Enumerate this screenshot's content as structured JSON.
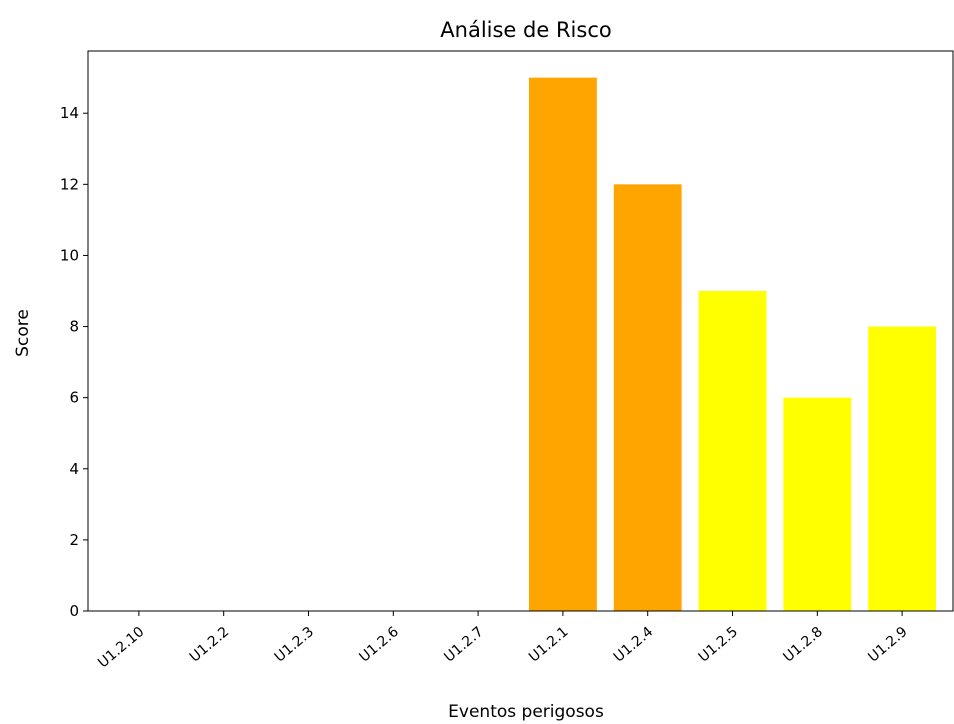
{
  "chart_data": {
    "type": "bar",
    "title": "Análise de Risco",
    "xlabel": "Eventos perigosos",
    "ylabel": "Score",
    "categories": [
      "U1.2.10",
      "U1.2.2",
      "U1.2.3",
      "U1.2.6",
      "U1.2.7",
      "U1.2.1",
      "U1.2.4",
      "U1.2.5",
      "U1.2.8",
      "U1.2.9"
    ],
    "values": [
      0,
      0,
      0,
      0,
      0,
      15,
      12,
      9,
      6,
      8
    ],
    "bar_colors": [
      "#ff0000",
      "#ff0000",
      "#ff0000",
      "#ff0000",
      "#ff0000",
      "#ffa500",
      "#ffa500",
      "#ffff00",
      "#ffff00",
      "#ffff00"
    ],
    "ylim": [
      0,
      15.75
    ],
    "yticks": [
      0,
      2,
      4,
      6,
      8,
      10,
      12,
      14
    ],
    "grid": false
  }
}
